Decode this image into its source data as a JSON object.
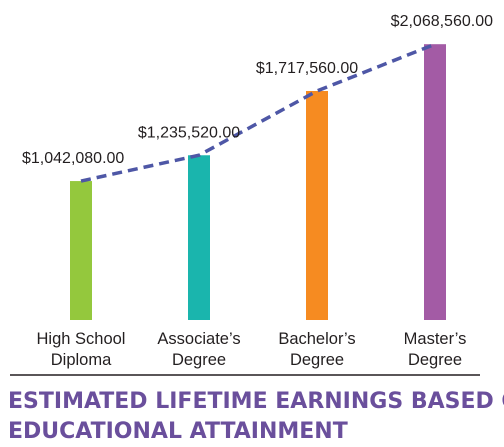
{
  "chart_data": {
    "type": "bar",
    "title": "ESTIMATED LIFETIME EARNINGS BASED ON EDUCATIONAL ATTAINMENT",
    "title_lines": [
      "ESTIMATED LIFETIME EARNINGS BASED ON",
      "EDUCATIONAL ATTAINMENT"
    ],
    "categories": [
      [
        "High School",
        "Diploma"
      ],
      [
        "Associate’s",
        "Degree"
      ],
      [
        "Bachelor’s",
        "Degree"
      ],
      [
        "Master’s",
        "Degree"
      ]
    ],
    "values": [
      1042080,
      1235520,
      1717560,
      2068560
    ],
    "value_labels": [
      "$1,042,080.00",
      "$1,235,520.00",
      "$1,717,560.00",
      "$2,068,560.00"
    ],
    "colors": [
      "#94c83d",
      "#1ab5ad",
      "#f68b21",
      "#a35ba5"
    ],
    "trend_line": {
      "style": "dashed",
      "color": "#4e57a6"
    },
    "title_color": "#6a4f9c",
    "ylim": [
      0,
      2100000
    ],
    "xlabel": "",
    "ylabel": "",
    "grid": false,
    "legend": "none"
  }
}
